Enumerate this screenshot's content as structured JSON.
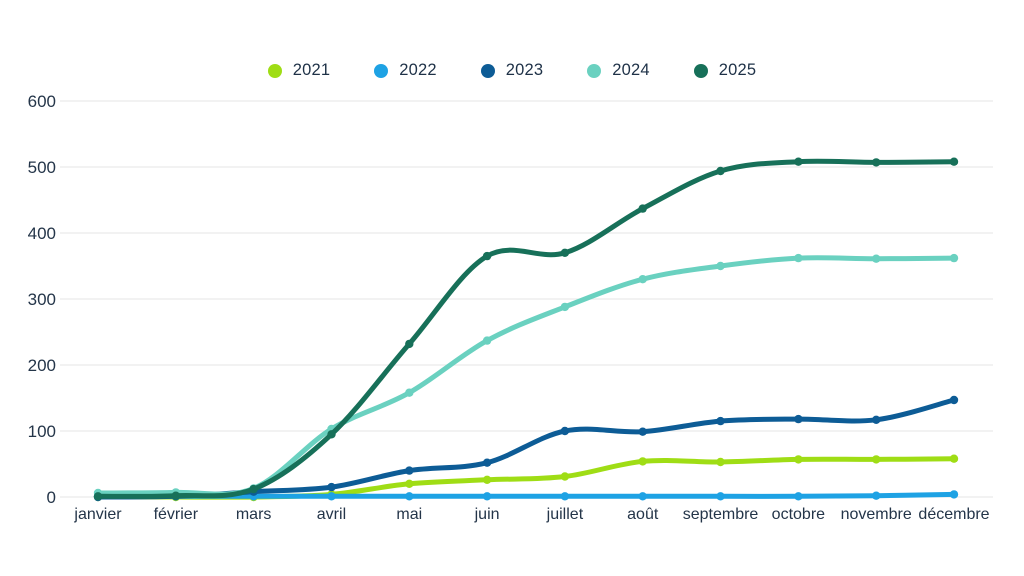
{
  "chart_data": {
    "type": "line",
    "title": "",
    "categories": [
      "janvier",
      "février",
      "mars",
      "avril",
      "mai",
      "juin",
      "juillet",
      "août",
      "septembre",
      "octobre",
      "novembre",
      "décembre"
    ],
    "xlabel": "",
    "ylabel": "",
    "ylim": [
      0,
      600
    ],
    "yticks": [
      0,
      100,
      200,
      300,
      400,
      500,
      600
    ],
    "grid": "horizontal",
    "legend_position": "top-center",
    "series": [
      {
        "name": "2021",
        "color": "#9fdd15",
        "values": [
          0,
          0,
          0,
          4,
          20,
          26,
          31,
          54,
          53,
          57,
          57,
          58
        ]
      },
      {
        "name": "2022",
        "color": "#1ea2e4",
        "values": [
          1,
          1,
          1,
          1,
          1,
          1,
          1,
          1,
          1,
          1,
          2,
          4
        ]
      },
      {
        "name": "2023",
        "color": "#0d5c96",
        "values": [
          0,
          1,
          8,
          15,
          40,
          52,
          100,
          99,
          115,
          118,
          117,
          147
        ]
      },
      {
        "name": "2024",
        "color": "#6ad1c0",
        "values": [
          6,
          7,
          13,
          103,
          158,
          237,
          288,
          330,
          350,
          362,
          361,
          362
        ]
      },
      {
        "name": "2025",
        "color": "#177059",
        "values": [
          1,
          2,
          12,
          95,
          232,
          365,
          370,
          437,
          494,
          508,
          507,
          508
        ]
      }
    ]
  },
  "colors": {
    "text": "#243549",
    "grid": "#e9ebeb",
    "background": "#ffffff"
  }
}
